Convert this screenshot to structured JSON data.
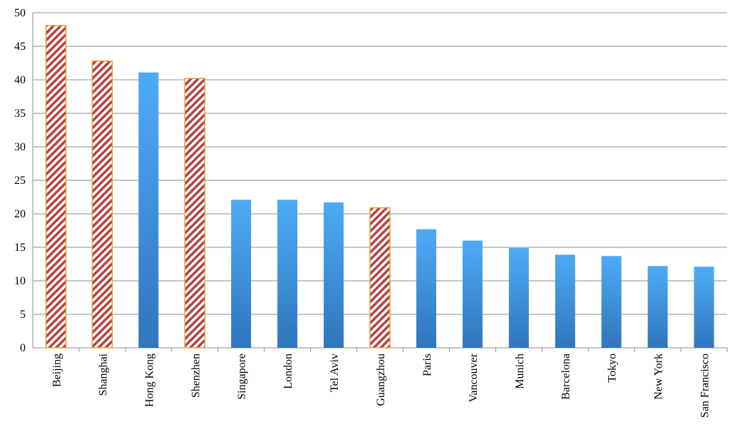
{
  "chart_data": {
    "type": "bar",
    "categories": [
      "Beijing",
      "Shanghai",
      "Hong Kong",
      "Shenzhen",
      "Singapore",
      "London",
      "Tel Aviv",
      "Guangzhou",
      "Paris",
      "Vancouver",
      "Munich",
      "Barcelona",
      "Tokyo",
      "New York",
      "San Francisco"
    ],
    "values": [
      48.1,
      42.8,
      41.1,
      40.2,
      22.1,
      22.1,
      21.7,
      20.9,
      17.7,
      16.0,
      14.9,
      13.9,
      13.7,
      12.2,
      12.1
    ],
    "hatched": [
      true,
      true,
      false,
      true,
      false,
      false,
      false,
      true,
      false,
      false,
      false,
      false,
      false,
      false,
      false
    ],
    "color": "#3d90dc",
    "hatch_color": "#b5413e",
    "hatch_border": "#e3a03a",
    "ylim": [
      0,
      50
    ],
    "yticks": [
      0,
      5,
      10,
      15,
      20,
      25,
      30,
      35,
      40,
      45,
      50
    ],
    "grid": true
  }
}
